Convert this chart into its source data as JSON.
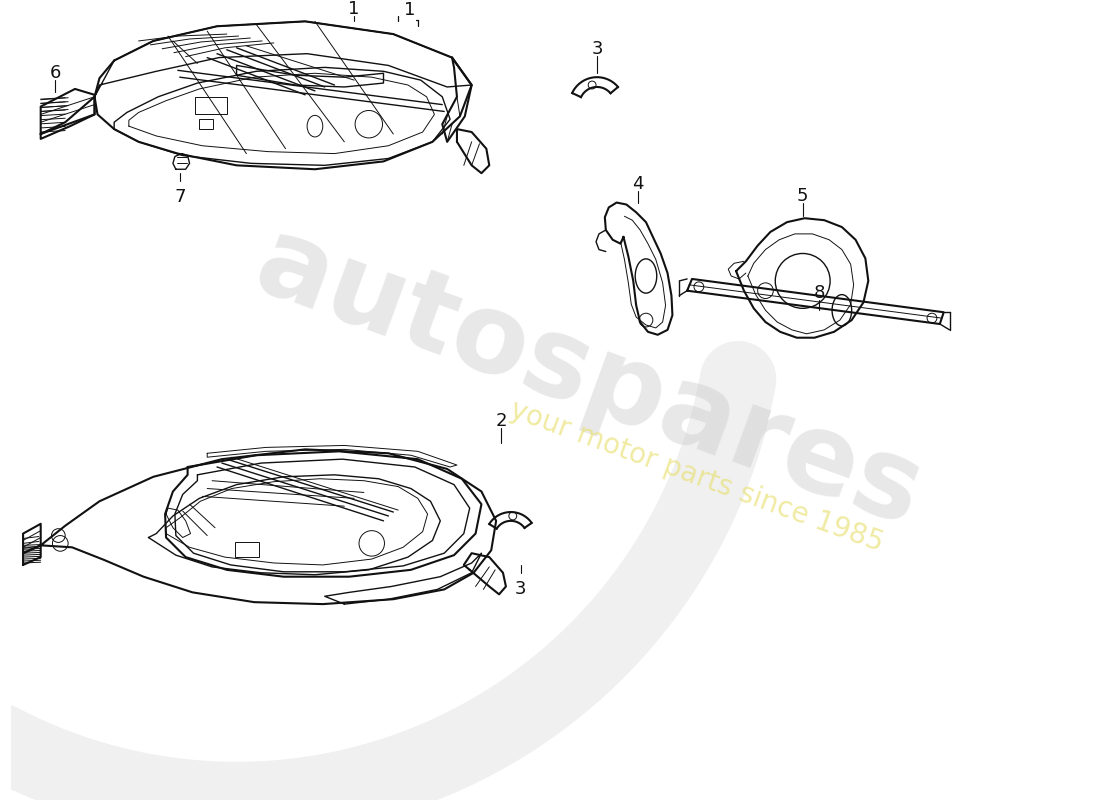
{
  "background_color": "#ffffff",
  "line_color": "#111111",
  "figsize": [
    11.0,
    8.0
  ],
  "dpi": 100,
  "label_fontsize": 12
}
